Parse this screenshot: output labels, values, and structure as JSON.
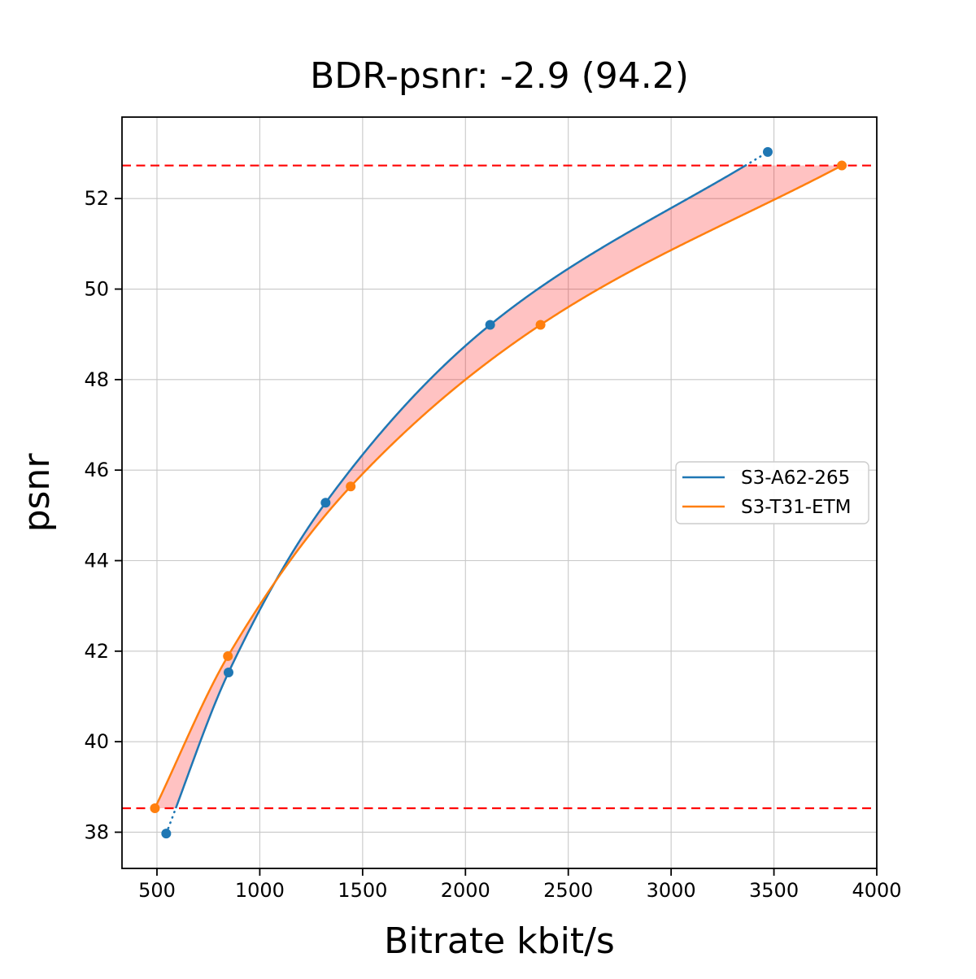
{
  "chart_data": {
    "type": "line",
    "title": "BDR-psnr: -2.9 (94.2)",
    "xlabel": "Bitrate kbit/s",
    "ylabel": "psnr",
    "xlim": [
      330,
      4000
    ],
    "ylim": [
      37.2,
      53.8
    ],
    "xticks": [
      500,
      1000,
      1500,
      2000,
      2500,
      3000,
      3500,
      4000
    ],
    "yticks": [
      38,
      40,
      42,
      44,
      46,
      48,
      50,
      52
    ],
    "grid": true,
    "grid_color": "#c8c8c8",
    "legend_position": "center right",
    "series": [
      {
        "name": "S3-A62-265",
        "color": "#1f77b4",
        "marker": "circle",
        "x": [
          545,
          848,
          1320,
          2120,
          3470
        ],
        "y": [
          37.97,
          41.53,
          45.28,
          49.21,
          53.03
        ]
      },
      {
        "name": "S3-T31-ETM",
        "color": "#ff7f0e",
        "marker": "circle",
        "x": [
          490,
          845,
          1442,
          2365,
          3830
        ],
        "y": [
          38.53,
          41.89,
          45.64,
          49.21,
          52.73
        ]
      }
    ],
    "bd_bounds_lines": {
      "values": [
        38.53,
        52.73
      ],
      "color": "#ff0000",
      "style": "dashed"
    },
    "fill_between": {
      "color": "#ff0000",
      "opacity": 0.24
    },
    "curve_style_outside_bounds": "dotted"
  }
}
